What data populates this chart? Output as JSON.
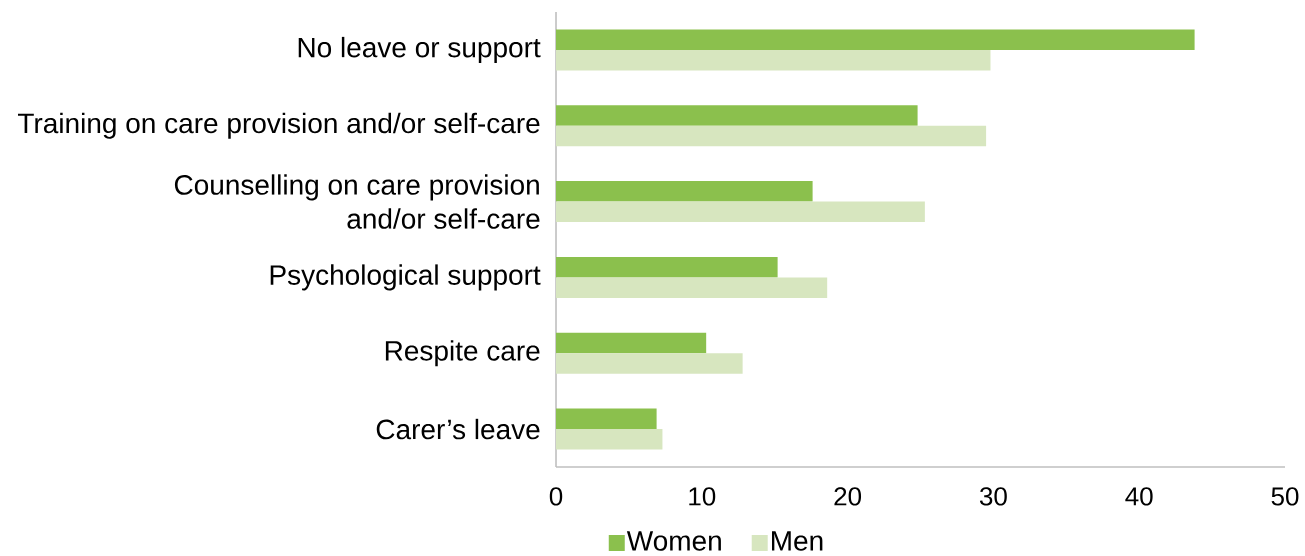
{
  "chart_data": {
    "type": "bar",
    "orientation": "horizontal",
    "categories": [
      "No leave or support",
      "Training on care provision and/or self-care",
      "Counselling on care provision and/or self-care",
      "Psychological support",
      "Respite care",
      "Carer’s leave"
    ],
    "series": [
      {
        "name": "Women",
        "color": "#8bc04d",
        "values": [
          43.8,
          24.8,
          17.6,
          15.2,
          10.3,
          6.9
        ]
      },
      {
        "name": "Men",
        "color": "#d7e6bf",
        "values": [
          29.8,
          29.5,
          25.3,
          18.6,
          12.8,
          7.3
        ]
      }
    ],
    "xlim": [
      0,
      50
    ],
    "xticks": [
      0,
      10,
      20,
      30,
      40,
      50
    ],
    "legend": "bottom"
  }
}
